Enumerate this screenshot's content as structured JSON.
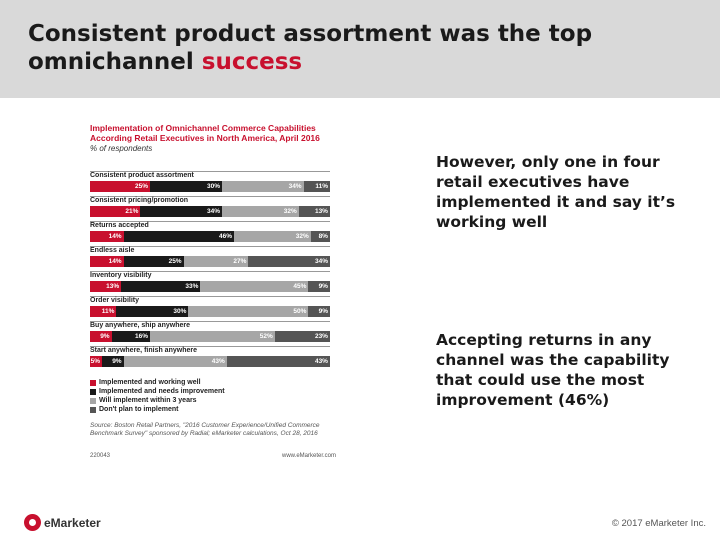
{
  "slide": {
    "title_main": "Consistent product assortment was the top omnichannel ",
    "title_accent": "success",
    "note_1": "However, only one in four retail executives have implemented it and say it’s working well",
    "note_2": "Accepting returns in any channel was the capability that could use the most improvement (46%)",
    "brand": "eMarketer",
    "copyright": "© 2017 eMarketer Inc."
  },
  "chart_data": {
    "type": "bar",
    "orientation": "horizontal",
    "stacked": true,
    "title": "Implementation of Omnichannel Commerce Capabilities According Retail Executives in North America, April 2016",
    "subtitle": "% of respondents",
    "categories": [
      "Consistent product assortment",
      "Consistent pricing/promotion",
      "Returns accepted",
      "Endless aisle",
      "Inventory visibility",
      "Order visibility",
      "Buy anywhere, ship anywhere",
      "Start anywhere, finish anywhere"
    ],
    "series": [
      {
        "name": "Implemented and working well",
        "color": "#c8102e",
        "values": [
          25,
          21,
          14,
          14,
          13,
          11,
          9,
          5
        ]
      },
      {
        "name": "Implemented and needs improvement",
        "color": "#1a1a1a",
        "values": [
          30,
          34,
          46,
          25,
          33,
          30,
          16,
          9
        ]
      },
      {
        "name": "Will implement within 3 years",
        "color": "#a6a6a6",
        "values": [
          34,
          32,
          32,
          27,
          45,
          50,
          52,
          43
        ]
      },
      {
        "name": "Don't plan to implement",
        "color": "#555555",
        "values": [
          11,
          13,
          8,
          34,
          9,
          9,
          23,
          43
        ]
      }
    ],
    "labels": [
      [
        "25%",
        "30%",
        "34%",
        "11%"
      ],
      [
        "21%",
        "34%",
        "32%",
        "13%"
      ],
      [
        "14%",
        "46%",
        "32%",
        "8%"
      ],
      [
        "14%",
        "25%",
        "27%",
        "34%"
      ],
      [
        "13%",
        "33%",
        "45%",
        "9%"
      ],
      [
        "11%",
        "30%",
        "50%",
        "9%"
      ],
      [
        "9%",
        "16%",
        "52%",
        "23%"
      ],
      [
        "5%",
        "9%",
        "43%",
        "43%"
      ]
    ],
    "xlim": [
      0,
      100
    ],
    "grid": false,
    "legend_position": "bottom-left",
    "source": "Source: Boston Retail Partners, \"2016 Customer Experience/Unified Commerce Benchmark Survey\" sponsored by Radial; eMarketer calculations, Oct 28, 2016",
    "footer_id": "220043",
    "footer_site": "www.eMarketer.com"
  }
}
